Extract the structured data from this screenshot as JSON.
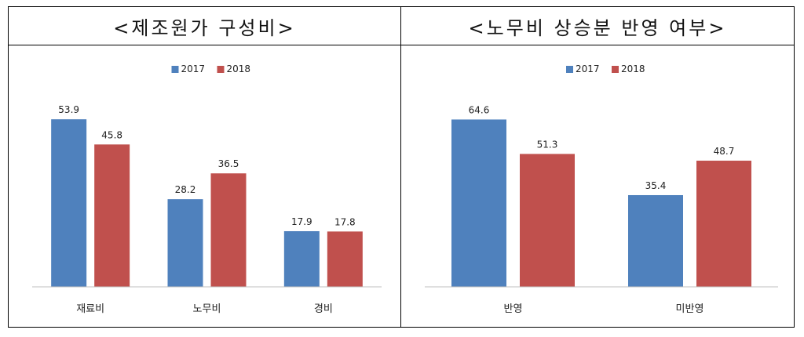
{
  "panels": [
    {
      "title": "<제조원가 구성비>"
    },
    {
      "title": "<노무비 상승분 반영 여부>"
    }
  ],
  "colors": {
    "2017": "#4f81bd",
    "2018": "#c0504d"
  },
  "chart_data": [
    {
      "type": "bar",
      "title": "<제조원가 구성비>",
      "categories": [
        "재료비",
        "노무비",
        "경비"
      ],
      "series": [
        {
          "name": "2017",
          "values": [
            53.9,
            28.2,
            17.9
          ]
        },
        {
          "name": "2018",
          "values": [
            45.8,
            36.5,
            17.8
          ]
        }
      ],
      "ylim": [
        0,
        60
      ],
      "legend": "top-center",
      "grid": false
    },
    {
      "type": "bar",
      "title": "<노무비 상승분 반영 여부>",
      "categories": [
        "반영",
        "미반영"
      ],
      "series": [
        {
          "name": "2017",
          "values": [
            64.6,
            35.4
          ]
        },
        {
          "name": "2018",
          "values": [
            51.3,
            48.7
          ]
        }
      ],
      "ylim": [
        0,
        72
      ],
      "legend": "top-center",
      "grid": false
    }
  ]
}
